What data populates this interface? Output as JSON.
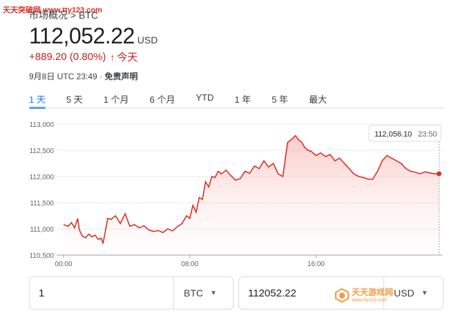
{
  "watermark_top": "天天突破网 www.tty123.com",
  "breadcrumb": "市场概况 > BTC",
  "price": "112,052.22",
  "currency": "USD",
  "change": "+889.20 (0.80%)",
  "change_period": "今天",
  "timestamp": "9月8日 UTC 23:49 · ",
  "disclaimer": "免责声明",
  "tabs": [
    {
      "label": "1 天",
      "active": true
    },
    {
      "label": "5 天",
      "active": false
    },
    {
      "label": "1 个月",
      "active": false
    },
    {
      "label": "6 个月",
      "active": false
    },
    {
      "label": "YTD",
      "active": false
    },
    {
      "label": "1 年",
      "active": false
    },
    {
      "label": "5 年",
      "active": false
    },
    {
      "label": "最大",
      "active": false
    }
  ],
  "colors": {
    "accent": "#1a73e8",
    "negative_line": "#d93025"
  },
  "tooltip": {
    "price": "112,056.10",
    "time": "23:50"
  },
  "chart_data": {
    "type": "area",
    "title": "",
    "xlabel": "",
    "ylabel": "",
    "ylim": [
      110500,
      113000
    ],
    "xlim": [
      0,
      24
    ],
    "y_ticks": [
      "113,000",
      "112,500",
      "112,000",
      "111,500",
      "111,000",
      "110,500"
    ],
    "y_tick_values": [
      113000,
      112500,
      112000,
      111500,
      111000,
      110500
    ],
    "x_ticks": [
      "00:00",
      "08:00",
      "16:00"
    ],
    "x_tick_values": [
      0,
      8,
      16
    ],
    "grid": true,
    "series": [
      {
        "x": [
          0,
          0.3,
          0.5,
          0.7,
          0.9,
          1.0,
          1.2,
          1.4,
          1.6,
          1.8,
          2.0,
          2.2,
          2.4,
          2.5,
          2.6,
          2.8,
          3.0,
          3.3,
          3.6,
          3.9,
          4.2,
          4.5,
          4.8,
          5.1,
          5.4,
          5.7,
          6.0,
          6.3,
          6.6,
          6.9,
          7.2,
          7.5,
          7.8,
          8.0,
          8.2,
          8.4,
          8.6,
          8.8,
          9.0,
          9.2,
          9.4,
          9.6,
          9.8,
          10.0,
          10.3,
          10.6,
          10.9,
          11.2,
          11.5,
          11.8,
          12.1,
          12.4,
          12.7,
          13.0,
          13.3,
          13.6,
          13.9,
          14.2,
          14.5,
          14.7,
          14.9,
          15.1,
          15.3,
          15.5,
          15.7,
          16.0,
          16.3,
          16.6,
          16.9,
          17.2,
          17.5,
          17.8,
          18.1,
          18.4,
          18.7,
          19.0,
          19.3,
          19.6,
          19.9,
          20.2,
          20.5,
          20.8,
          21.1,
          21.4,
          21.7,
          22.0,
          22.3,
          22.6,
          22.9,
          23.2,
          23.5,
          23.8
        ],
        "y": [
          111080,
          111050,
          111120,
          111020,
          111200,
          110980,
          110860,
          110830,
          110900,
          110850,
          110880,
          110800,
          110820,
          110720,
          110880,
          111200,
          111180,
          111250,
          111100,
          111290,
          111050,
          111080,
          111020,
          111060,
          110980,
          110950,
          110970,
          110930,
          111000,
          110960,
          111040,
          111100,
          111250,
          111200,
          111450,
          111320,
          111600,
          111560,
          111900,
          111800,
          112000,
          111980,
          112100,
          112050,
          112120,
          112020,
          111930,
          111960,
          112100,
          112060,
          112200,
          112150,
          112300,
          112180,
          112250,
          112050,
          112000,
          112650,
          112720,
          112780,
          112700,
          112650,
          112550,
          112500,
          112480,
          112400,
          112450,
          112380,
          112420,
          112300,
          112350,
          112250,
          112150,
          112050,
          112000,
          111980,
          111950,
          111950,
          112100,
          112300,
          112400,
          112350,
          112300,
          112250,
          112150,
          112100,
          112080,
          112050,
          112090,
          112070,
          112050,
          112056
        ]
      }
    ],
    "current_point": {
      "x": 23.8,
      "y": 112052.22
    }
  },
  "converter": {
    "left": {
      "value": "1",
      "unit": "BTC"
    },
    "right": {
      "value": "112052.22",
      "unit": "USD"
    }
  },
  "watermark_bottom": {
    "title": "天天游戏网",
    "url": "www.tty123.com"
  }
}
